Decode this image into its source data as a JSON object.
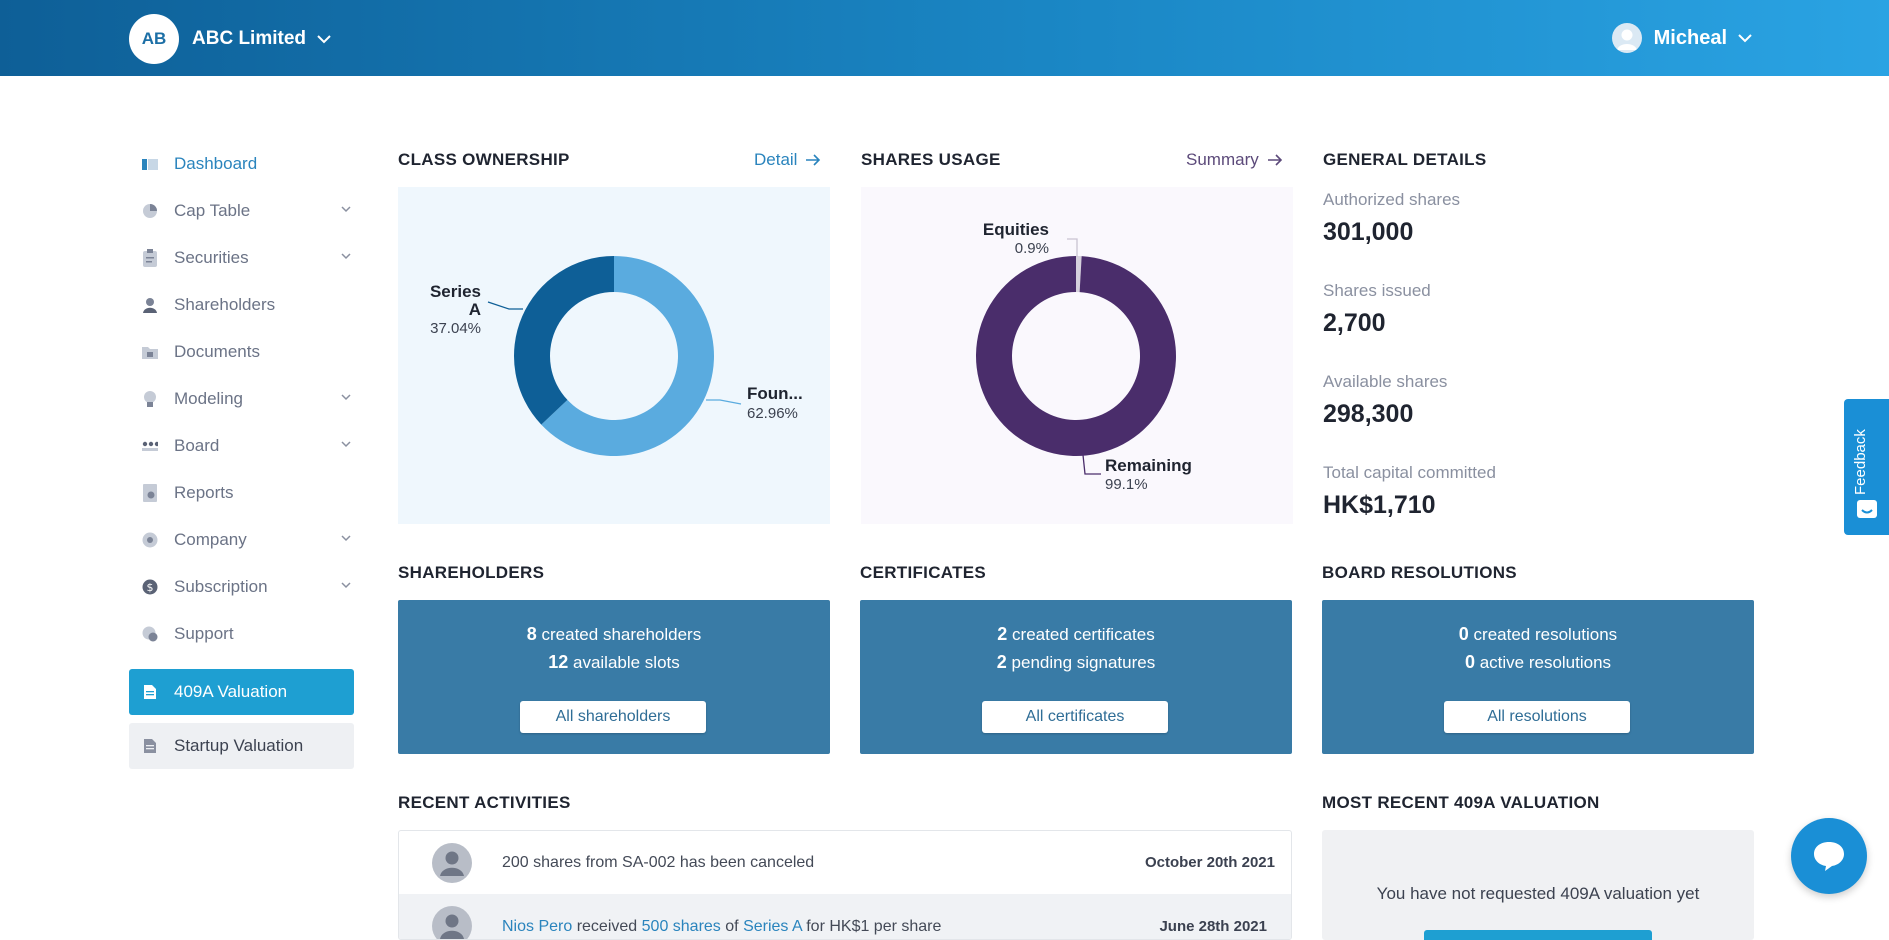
{
  "header": {
    "company_initials": "AB",
    "company_name": "ABC Limited",
    "user_name": "Micheal"
  },
  "sidebar": {
    "items": [
      {
        "label": "Dashboard",
        "icon": "dashboard-icon",
        "active": true,
        "expandable": false
      },
      {
        "label": "Cap Table",
        "icon": "pie-chart-icon",
        "expandable": true
      },
      {
        "label": "Securities",
        "icon": "clipboard-icon",
        "expandable": true
      },
      {
        "label": "Shareholders",
        "icon": "person-icon",
        "expandable": false
      },
      {
        "label": "Documents",
        "icon": "folder-icon",
        "expandable": false
      },
      {
        "label": "Modeling",
        "icon": "lightbulb-icon",
        "expandable": true
      },
      {
        "label": "Board",
        "icon": "board-icon",
        "expandable": true
      },
      {
        "label": "Reports",
        "icon": "report-icon",
        "expandable": false
      },
      {
        "label": "Company",
        "icon": "building-icon",
        "expandable": true
      },
      {
        "label": "Subscription",
        "icon": "dollar-icon",
        "expandable": true
      },
      {
        "label": "Support",
        "icon": "support-icon",
        "expandable": false
      }
    ],
    "valuation_409a_label": "409A Valuation",
    "startup_valuation_label": "Startup Valuation"
  },
  "class_ownership": {
    "title": "CLASS OWNERSHIP",
    "link_label": "Detail"
  },
  "shares_usage": {
    "title": "SHARES USAGE",
    "link_label": "Summary"
  },
  "chart_data": [
    {
      "type": "pie",
      "variant": "donut",
      "labels": [
        "Series A",
        "Foun..."
      ],
      "values": [
        37.04,
        62.96
      ],
      "value_labels": [
        "37.04%",
        "62.96%"
      ],
      "label_series_a_line1": "Series",
      "label_series_a_line2": "A",
      "colors": [
        "#0e5f97",
        "#5aabdf"
      ]
    },
    {
      "type": "pie",
      "variant": "donut",
      "labels": [
        "Equities",
        "Remaining"
      ],
      "values": [
        0.9,
        99.1
      ],
      "value_labels": [
        "0.9%",
        "99.1%"
      ],
      "colors": [
        "#d5d0dc",
        "#4a2d6b"
      ]
    }
  ],
  "general_details": {
    "title": "GENERAL DETAILS",
    "authorized_label": "Authorized shares",
    "authorized_value": "301,000",
    "issued_label": "Shares issued",
    "issued_value": "2,700",
    "available_label": "Available shares",
    "available_value": "298,300",
    "capital_label": "Total capital committed",
    "capital_value": "HK$1,710"
  },
  "shareholders_card": {
    "title": "SHAREHOLDERS",
    "count1": "8",
    "text1": "created shareholders",
    "count2": "12",
    "text2": "available slots",
    "button": "All shareholders"
  },
  "certificates_card": {
    "title": "CERTIFICATES",
    "count1": "2",
    "text1": "created certificates",
    "count2": "2",
    "text2": "pending signatures",
    "button": "All certificates"
  },
  "resolutions_card": {
    "title": "BOARD RESOLUTIONS",
    "count1": "0",
    "text1": "created resolutions",
    "count2": "0",
    "text2": "active resolutions",
    "button": "All resolutions"
  },
  "recent_activities": {
    "title": "RECENT ACTIVITIES",
    "rows": [
      {
        "text": "200 shares from SA-002 has been canceled",
        "date": "October 20th 2021"
      },
      {
        "name": "Nios Pero",
        "verb": "received",
        "shares": "500 shares",
        "of": "of",
        "class": "Series A",
        "tail": "for HK$1 per share",
        "date": "June 28th 2021"
      }
    ]
  },
  "valuation_409a": {
    "title": "MOST RECENT 409A VALUATION",
    "empty_text": "You have not requested 409A valuation yet"
  },
  "feedback": {
    "label": "Feedback"
  },
  "colors": {
    "header_start": "#0e5f97",
    "header_end": "#2aa3e3",
    "accent": "#2a84bd",
    "card_blue": "#397ba6",
    "series_a": "#0e5f97",
    "founders": "#5aabdf",
    "remaining": "#4a2d6b"
  }
}
